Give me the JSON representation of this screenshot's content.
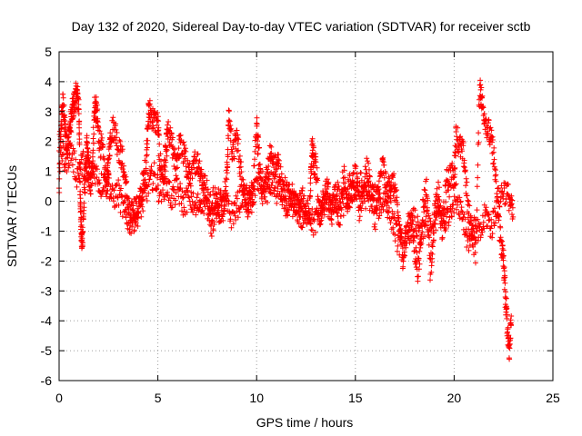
{
  "chart_data": {
    "type": "scatter",
    "title": "Day 132 of 2020, Sidereal Day-to-day VTEC variation (SDTVAR) for receiver sctb",
    "xlabel": "GPS time / hours",
    "ylabel": "SDTVAR / TECUs",
    "xlim": [
      0,
      25
    ],
    "ylim": [
      -6,
      5
    ],
    "xticks": [
      0,
      5,
      10,
      15,
      20,
      25
    ],
    "yticks": [
      -6,
      -5,
      -4,
      -3,
      -2,
      -1,
      0,
      1,
      2,
      3,
      4,
      5
    ],
    "grid": true,
    "marker": "+",
    "color": "#ff0000",
    "series": [
      {
        "name": "SDTVAR",
        "segments": [
          [
            [
              0.0,
              0.3
            ],
            [
              0.1,
              2.6
            ],
            [
              0.2,
              3.3
            ],
            [
              0.3,
              2.4
            ],
            [
              0.4,
              1.8
            ],
            [
              0.5,
              2.2
            ],
            [
              0.6,
              2.7
            ],
            [
              0.7,
              3.1
            ],
            [
              0.8,
              3.4
            ],
            [
              0.9,
              3.6
            ],
            [
              1.0,
              3.2
            ],
            [
              1.05,
              1.0
            ],
            [
              1.1,
              -0.6
            ],
            [
              1.15,
              -1.4
            ],
            [
              1.2,
              -1.0
            ],
            [
              1.3,
              0.5
            ],
            [
              1.4,
              1.8
            ],
            [
              1.5,
              1.2
            ],
            [
              1.6,
              0.4
            ],
            [
              1.7,
              1.5
            ],
            [
              1.8,
              3.2
            ],
            [
              1.9,
              3.0
            ],
            [
              2.0,
              2.2
            ],
            [
              2.2,
              1.6
            ],
            [
              2.4,
              0.5
            ],
            [
              2.5,
              1.2
            ],
            [
              2.6,
              2.3
            ],
            [
              2.8,
              2.5
            ],
            [
              3.0,
              1.8
            ],
            [
              3.2,
              1.4
            ],
            [
              3.4,
              0.4
            ],
            [
              3.6,
              -0.6
            ],
            [
              3.8,
              -0.2
            ],
            [
              4.0,
              -0.3
            ],
            [
              4.2,
              0.4
            ],
            [
              4.4,
              1.2
            ],
            [
              4.5,
              2.8
            ],
            [
              4.6,
              3.0
            ],
            [
              4.8,
              2.7
            ],
            [
              5.0,
              2.6
            ],
            [
              5.1,
              1.3
            ],
            [
              5.3,
              0.8
            ],
            [
              5.4,
              1.6
            ],
            [
              5.5,
              2.3
            ],
            [
              5.7,
              1.9
            ],
            [
              5.9,
              1.2
            ],
            [
              6.1,
              1.9
            ],
            [
              6.3,
              1.6
            ],
            [
              6.5,
              1.1
            ],
            [
              6.7,
              0.7
            ],
            [
              6.9,
              1.4
            ],
            [
              7.1,
              1.2
            ],
            [
              7.3,
              0.6
            ],
            [
              7.5,
              0.3
            ],
            [
              7.7,
              -0.8
            ],
            [
              7.9,
              -0.4
            ],
            [
              8.1,
              0.3
            ],
            [
              8.3,
              -0.3
            ],
            [
              8.5,
              0.9
            ],
            [
              8.6,
              2.9
            ],
            [
              8.8,
              1.5
            ],
            [
              9.0,
              2.2
            ],
            [
              9.2,
              1.0
            ],
            [
              9.4,
              0.2
            ],
            [
              9.6,
              -0.2
            ],
            [
              9.8,
              0.1
            ],
            [
              10.0,
              2.5
            ],
            [
              10.1,
              1.6
            ],
            [
              10.3,
              0.2
            ],
            [
              10.5,
              0.8
            ],
            [
              10.7,
              1.6
            ],
            [
              10.9,
              1.1
            ],
            [
              11.1,
              1.3
            ],
            [
              11.3,
              0.4
            ],
            [
              11.5,
              -0.3
            ],
            [
              11.7,
              0.3
            ],
            [
              11.9,
              0.0
            ],
            [
              12.1,
              -0.3
            ],
            [
              12.3,
              0.2
            ],
            [
              12.5,
              -0.5
            ],
            [
              12.7,
              -0.2
            ],
            [
              12.8,
              1.9
            ],
            [
              12.9,
              1.3
            ],
            [
              13.0,
              1.2
            ],
            [
              13.2,
              -0.5
            ],
            [
              13.4,
              0.1
            ],
            [
              13.6,
              0.4
            ],
            [
              13.8,
              -0.4
            ],
            [
              14.0,
              0.3
            ],
            [
              14.2,
              -0.6
            ],
            [
              14.4,
              0.9
            ],
            [
              14.6,
              0.0
            ],
            [
              14.8,
              0.3
            ],
            [
              15.0,
              0.9
            ],
            [
              15.2,
              -0.3
            ],
            [
              15.4,
              0.4
            ],
            [
              15.6,
              1.1
            ],
            [
              15.8,
              0.3
            ],
            [
              16.0,
              -0.6
            ],
            [
              16.2,
              0.5
            ],
            [
              16.4,
              1.2
            ],
            [
              16.6,
              0.2
            ],
            [
              16.8,
              0.7
            ],
            [
              17.0,
              0.4
            ],
            [
              17.2,
              -0.7
            ],
            [
              17.4,
              -1.8
            ],
            [
              17.6,
              -1.2
            ],
            [
              17.8,
              -0.4
            ],
            [
              18.0,
              -1.6
            ],
            [
              18.2,
              -2.4
            ],
            [
              18.4,
              -0.3
            ],
            [
              18.6,
              0.5
            ],
            [
              18.8,
              -2.4
            ],
            [
              19.0,
              -0.5
            ],
            [
              19.2,
              0.3
            ],
            [
              19.4,
              -1.0
            ],
            [
              19.6,
              0.6
            ],
            [
              19.8,
              0.9
            ],
            [
              20.0,
              0.8
            ],
            [
              20.1,
              2.3
            ],
            [
              20.3,
              1.8
            ],
            [
              20.5,
              1.5
            ],
            [
              20.7,
              -0.3
            ],
            [
              20.9,
              -1.0
            ],
            [
              21.1,
              -1.7
            ],
            [
              21.3,
              4.0
            ],
            [
              21.4,
              3.3
            ],
            [
              21.6,
              2.7
            ],
            [
              21.8,
              2.2
            ],
            [
              22.0,
              1.6
            ],
            [
              22.2,
              -0.3
            ],
            [
              22.4,
              -1.5
            ],
            [
              22.5,
              -2.0
            ],
            [
              22.6,
              -3.3
            ],
            [
              22.7,
              -4.2
            ],
            [
              22.8,
              -5.0
            ],
            [
              22.9,
              -3.6
            ]
          ],
          [
            [
              0.0,
              2.0
            ],
            [
              0.3,
              1.3
            ],
            [
              0.6,
              1.7
            ],
            [
              0.9,
              0.9
            ],
            [
              1.2,
              1.3
            ],
            [
              1.5,
              0.6
            ],
            [
              1.8,
              1.1
            ],
            [
              2.1,
              0.5
            ],
            [
              2.4,
              0.9
            ],
            [
              2.7,
              0.1
            ],
            [
              3.0,
              0.3
            ],
            [
              3.3,
              -0.4
            ],
            [
              3.6,
              -0.7
            ],
            [
              3.9,
              -0.5
            ],
            [
              4.2,
              -0.1
            ],
            [
              4.5,
              0.5
            ],
            [
              4.8,
              0.9
            ],
            [
              5.1,
              0.3
            ],
            [
              5.4,
              0.6
            ],
            [
              5.7,
              0.1
            ],
            [
              6.0,
              0.4
            ],
            [
              6.3,
              -0.1
            ],
            [
              6.6,
              0.2
            ],
            [
              6.9,
              -0.3
            ],
            [
              7.2,
              0.1
            ],
            [
              7.5,
              -0.2
            ],
            [
              7.8,
              0.2
            ],
            [
              8.1,
              -0.4
            ],
            [
              8.4,
              0.0
            ],
            [
              8.7,
              -0.5
            ],
            [
              9.0,
              -0.2
            ],
            [
              9.3,
              0.3
            ],
            [
              9.6,
              0.0
            ],
            [
              9.9,
              0.4
            ],
            [
              10.2,
              0.7
            ],
            [
              10.5,
              0.3
            ],
            [
              10.8,
              0.6
            ],
            [
              11.1,
              0.2
            ],
            [
              11.4,
              0.4
            ],
            [
              11.7,
              0.0
            ],
            [
              12.0,
              -0.2
            ],
            [
              12.3,
              -0.6
            ],
            [
              12.6,
              -0.3
            ],
            [
              12.9,
              -0.8
            ],
            [
              13.2,
              -0.4
            ],
            [
              13.5,
              0.0
            ],
            [
              13.8,
              -0.3
            ],
            [
              14.1,
              0.2
            ],
            [
              14.4,
              -0.1
            ],
            [
              14.7,
              0.5
            ],
            [
              15.0,
              0.2
            ],
            [
              15.3,
              0.6
            ],
            [
              15.6,
              0.0
            ],
            [
              15.9,
              0.3
            ],
            [
              16.2,
              -0.2
            ],
            [
              16.5,
              0.1
            ],
            [
              16.8,
              -0.4
            ],
            [
              17.1,
              -1.2
            ],
            [
              17.4,
              -1.6
            ],
            [
              17.7,
              -1.0
            ],
            [
              18.0,
              -0.6
            ],
            [
              18.3,
              -1.3
            ],
            [
              18.6,
              -0.6
            ],
            [
              18.9,
              -1.1
            ],
            [
              19.2,
              -0.4
            ],
            [
              19.5,
              -0.8
            ],
            [
              19.8,
              -0.2
            ],
            [
              20.1,
              0.2
            ],
            [
              20.4,
              -0.3
            ],
            [
              20.7,
              -1.3
            ],
            [
              21.0,
              -0.8
            ],
            [
              21.3,
              -1.2
            ],
            [
              21.6,
              -0.4
            ],
            [
              21.9,
              -0.9
            ],
            [
              22.2,
              0.0
            ],
            [
              22.5,
              0.4
            ],
            [
              22.8,
              0.1
            ],
            [
              23.0,
              -0.6
            ]
          ]
        ]
      }
    ]
  }
}
